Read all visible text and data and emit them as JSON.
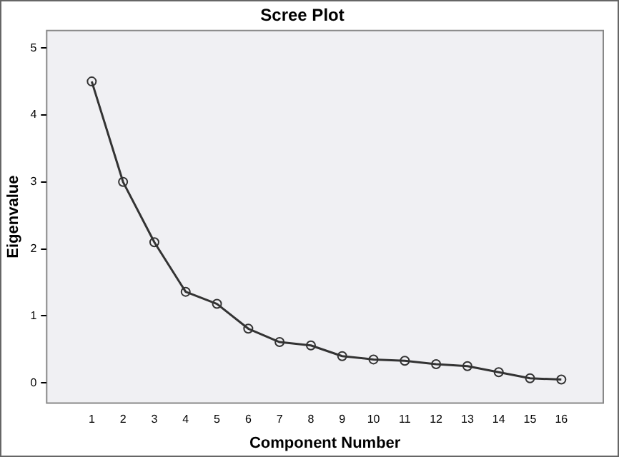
{
  "chart_data": {
    "type": "line",
    "title": "Scree Plot",
    "xlabel": "Component Number",
    "ylabel": "Eigenvalue",
    "x": [
      1,
      2,
      3,
      4,
      5,
      6,
      7,
      8,
      9,
      10,
      11,
      12,
      13,
      14,
      15,
      16
    ],
    "values": [
      4.5,
      3.0,
      2.1,
      1.36,
      1.18,
      0.81,
      0.61,
      0.56,
      0.4,
      0.35,
      0.33,
      0.28,
      0.25,
      0.16,
      0.07,
      0.05
    ],
    "color": "#333333",
    "marker": "circle",
    "line_style": "solid",
    "xlim": [
      -0.44,
      17.34
    ],
    "xticks": [
      1,
      2,
      3,
      4,
      5,
      6,
      7,
      8,
      9,
      10,
      11,
      12,
      13,
      14,
      15,
      16
    ],
    "ylim": [
      -0.3,
      5.26
    ],
    "yticks": [
      0,
      1,
      2,
      3,
      4,
      5
    ],
    "grid": false,
    "legend": false
  }
}
